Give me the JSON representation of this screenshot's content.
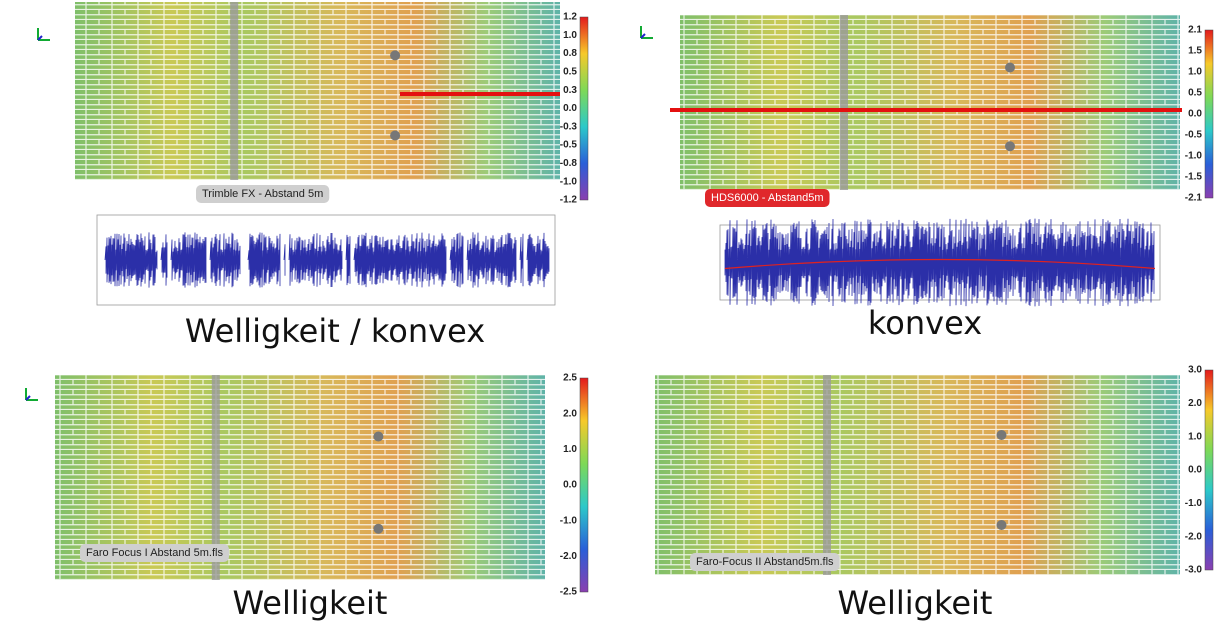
{
  "panels": [
    {
      "label": "Trimble FX - Abstand 5m",
      "caption": "Welligkeit / konvex",
      "colorbar_ticks": [
        "1.2",
        "1.0",
        "0.8",
        "0.5",
        "0.3",
        "0.0",
        "-0.3",
        "-0.5",
        "-0.8",
        "-1.0",
        "-1.2"
      ]
    },
    {
      "label": "HDS6000 - Abstand5m",
      "caption": "konvex",
      "colorbar_ticks": [
        "2.1",
        "1.5",
        "1.0",
        "0.5",
        "0.0",
        "-0.5",
        "-1.0",
        "-1.5",
        "-2.1"
      ]
    },
    {
      "label": "Faro Focus I Abstand 5m.fls",
      "caption": "Welligkeit",
      "colorbar_ticks": [
        "2.5",
        "2.0",
        "1.0",
        "0.0",
        "-1.0",
        "-2.0",
        "-2.5"
      ]
    },
    {
      "label": "Faro-Focus II Abstand5m.fls",
      "caption": "Welligkeit",
      "colorbar_ticks": [
        "3.0",
        "2.0",
        "1.0",
        "0.0",
        "-1.0",
        "-2.0",
        "-3.0"
      ]
    }
  ]
}
